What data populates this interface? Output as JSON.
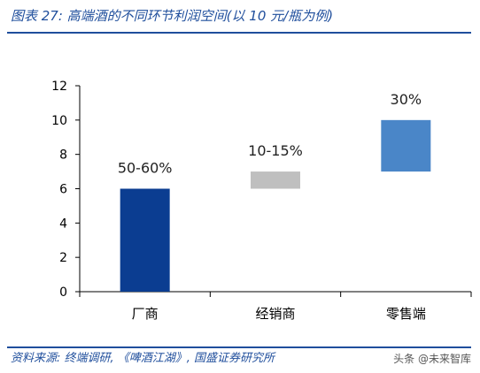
{
  "title": "图表 27:  高端酒的不同环节利润空间(以 10 元/瓶为例)",
  "source": "资料来源:  终端调研,  《啤酒江湖》,  国盛证券研究所",
  "watermark": "头条 @未来智库",
  "chart_data": {
    "type": "bar",
    "subtype": "floating",
    "categories": [
      "厂商",
      "经销商",
      "零售端"
    ],
    "ranges": [
      [
        0,
        6
      ],
      [
        6,
        7
      ],
      [
        7,
        10
      ]
    ],
    "data_labels": [
      "50-60%",
      "10-15%",
      "30%"
    ],
    "colors": [
      "#0b3d91",
      "#bfbfbf",
      "#4a86c8"
    ],
    "ylim": [
      0,
      12
    ],
    "yticks": [
      0,
      2,
      4,
      6,
      8,
      10,
      12
    ],
    "grid": false,
    "legend": "none"
  }
}
